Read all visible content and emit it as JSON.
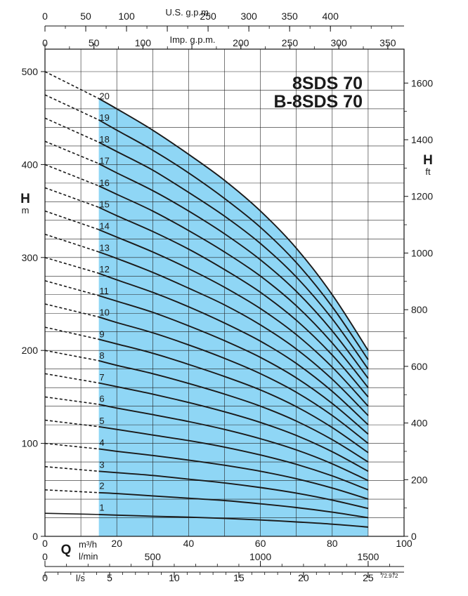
{
  "chart_data": {
    "type": "line",
    "title": "8SDS 70",
    "subtitle": "B-8SDS 70",
    "code": "72.972",
    "colors": {
      "band": "#8fd6f5",
      "curve": "#1a1a1a",
      "grid": "#222222"
    },
    "y_left": {
      "label": "H",
      "unit": "m",
      "range": [
        0,
        500
      ],
      "ticks": [
        0,
        100,
        200,
        300,
        400,
        500
      ]
    },
    "y_right": {
      "label": "H",
      "unit": "ft",
      "ticks": [
        0,
        200,
        400,
        600,
        800,
        1000,
        1200,
        1400,
        1600
      ]
    },
    "x_axes": {
      "usgpm": {
        "label": "U.S. g.p.m.",
        "ticks": [
          "0",
          "50",
          "100",
          "",
          "250",
          "300",
          "350",
          "400"
        ],
        "max": 440.3
      },
      "impgpm": {
        "label": "Imp. g.p.m.",
        "ticks": [
          "0",
          "50",
          "100",
          "",
          "200",
          "250",
          "300",
          "350"
        ],
        "max": 366.6
      },
      "m3h": {
        "label_q": "Q",
        "label": "m³/h",
        "ticks": [
          "0",
          "20",
          "40",
          "60",
          "80",
          "100"
        ],
        "max": 100
      },
      "lmin": {
        "label": "l/min",
        "ticks": [
          "0",
          "500",
          "1000",
          "1500"
        ],
        "max": 1666.7
      },
      "ls": {
        "label": "l/s",
        "ticks": [
          "0",
          "5",
          "10",
          "15",
          "20",
          "25"
        ],
        "max": 27.78
      }
    },
    "operating_range_m3h": [
      15,
      90
    ],
    "stage_label_x_m3h": 17.5,
    "series": [
      {
        "name": "1",
        "shutoff": 24.8,
        "points": [
          [
            15,
            23.5
          ],
          [
            20,
            22.8
          ],
          [
            30,
            21.6
          ],
          [
            40,
            20.6
          ],
          [
            50,
            19.3
          ],
          [
            60,
            17.6
          ],
          [
            70,
            15.5
          ],
          [
            80,
            13.1
          ],
          [
            90,
            10.0
          ]
        ]
      },
      {
        "name": "2",
        "shutoff": 50,
        "points": [
          [
            15,
            47
          ],
          [
            20,
            46
          ],
          [
            30,
            43.5
          ],
          [
            40,
            41
          ],
          [
            50,
            38.5
          ],
          [
            60,
            35
          ],
          [
            70,
            31
          ],
          [
            80,
            26
          ],
          [
            90,
            20
          ]
        ]
      },
      {
        "name": "3",
        "shutoff": 75,
        "points": [
          [
            15,
            70
          ],
          [
            20,
            68.5
          ],
          [
            30,
            65.5
          ],
          [
            40,
            61.5
          ],
          [
            50,
            57.5
          ],
          [
            60,
            52.5
          ],
          [
            70,
            46.5
          ],
          [
            80,
            39
          ],
          [
            90,
            30
          ]
        ]
      },
      {
        "name": "4",
        "shutoff": 100,
        "points": [
          [
            15,
            94
          ],
          [
            20,
            91.5
          ],
          [
            30,
            87
          ],
          [
            40,
            82
          ],
          [
            50,
            76.5
          ],
          [
            60,
            70
          ],
          [
            70,
            62
          ],
          [
            80,
            52
          ],
          [
            90,
            40
          ]
        ]
      },
      {
        "name": "5",
        "shutoff": 125,
        "points": [
          [
            15,
            118
          ],
          [
            20,
            115
          ],
          [
            30,
            109
          ],
          [
            40,
            103
          ],
          [
            50,
            96
          ],
          [
            60,
            87.5
          ],
          [
            70,
            77.5
          ],
          [
            80,
            65
          ],
          [
            90,
            50
          ]
        ]
      },
      {
        "name": "6",
        "shutoff": 150,
        "points": [
          [
            15,
            142
          ],
          [
            20,
            138
          ],
          [
            30,
            131
          ],
          [
            40,
            123.5
          ],
          [
            50,
            115
          ],
          [
            60,
            105
          ],
          [
            70,
            93
          ],
          [
            80,
            78
          ],
          [
            90,
            60
          ]
        ]
      },
      {
        "name": "7",
        "shutoff": 175,
        "points": [
          [
            15,
            165
          ],
          [
            20,
            161
          ],
          [
            30,
            153
          ],
          [
            40,
            144
          ],
          [
            50,
            134
          ],
          [
            60,
            122.5
          ],
          [
            70,
            108.5
          ],
          [
            80,
            91
          ],
          [
            90,
            70
          ]
        ]
      },
      {
        "name": "8",
        "shutoff": 200,
        "points": [
          [
            15,
            189
          ],
          [
            20,
            184
          ],
          [
            30,
            175
          ],
          [
            40,
            164.5
          ],
          [
            50,
            153
          ],
          [
            60,
            140
          ],
          [
            70,
            124
          ],
          [
            80,
            104
          ],
          [
            90,
            80
          ]
        ]
      },
      {
        "name": "9",
        "shutoff": 225,
        "points": [
          [
            15,
            212
          ],
          [
            20,
            207
          ],
          [
            30,
            197
          ],
          [
            40,
            185
          ],
          [
            50,
            172
          ],
          [
            60,
            157.5
          ],
          [
            70,
            139.5
          ],
          [
            80,
            117
          ],
          [
            90,
            90
          ]
        ]
      },
      {
        "name": "10",
        "shutoff": 250,
        "points": [
          [
            15,
            236
          ],
          [
            20,
            230
          ],
          [
            30,
            219
          ],
          [
            40,
            206
          ],
          [
            50,
            191.5
          ],
          [
            60,
            175
          ],
          [
            70,
            155
          ],
          [
            80,
            130
          ],
          [
            90,
            100
          ]
        ]
      },
      {
        "name": "11",
        "shutoff": 275,
        "points": [
          [
            15,
            259
          ],
          [
            20,
            253
          ],
          [
            30,
            241
          ],
          [
            40,
            226.5
          ],
          [
            50,
            210.5
          ],
          [
            60,
            192.5
          ],
          [
            70,
            170.5
          ],
          [
            80,
            143
          ],
          [
            90,
            110
          ]
        ]
      },
      {
        "name": "12",
        "shutoff": 300,
        "points": [
          [
            15,
            283
          ],
          [
            20,
            276
          ],
          [
            30,
            262.5
          ],
          [
            40,
            247
          ],
          [
            50,
            229.5
          ],
          [
            60,
            210
          ],
          [
            70,
            186
          ],
          [
            80,
            156
          ],
          [
            90,
            120
          ]
        ]
      },
      {
        "name": "13",
        "shutoff": 325,
        "points": [
          [
            15,
            306
          ],
          [
            20,
            299
          ],
          [
            30,
            284
          ],
          [
            40,
            267
          ],
          [
            50,
            249
          ],
          [
            60,
            227.5
          ],
          [
            70,
            201.5
          ],
          [
            80,
            169
          ],
          [
            90,
            130
          ]
        ]
      },
      {
        "name": "14",
        "shutoff": 350,
        "points": [
          [
            15,
            330
          ],
          [
            20,
            322
          ],
          [
            30,
            306
          ],
          [
            40,
            288
          ],
          [
            50,
            268
          ],
          [
            60,
            245
          ],
          [
            70,
            217
          ],
          [
            80,
            182
          ],
          [
            90,
            140
          ]
        ]
      },
      {
        "name": "15",
        "shutoff": 375,
        "points": [
          [
            15,
            354
          ],
          [
            20,
            345
          ],
          [
            30,
            328
          ],
          [
            40,
            309
          ],
          [
            50,
            287
          ],
          [
            60,
            262.5
          ],
          [
            70,
            232.5
          ],
          [
            80,
            195
          ],
          [
            90,
            150
          ]
        ]
      },
      {
        "name": "16",
        "shutoff": 400,
        "points": [
          [
            15,
            377
          ],
          [
            20,
            368
          ],
          [
            30,
            350
          ],
          [
            40,
            329
          ],
          [
            50,
            306
          ],
          [
            60,
            280
          ],
          [
            70,
            248
          ],
          [
            80,
            208
          ],
          [
            90,
            160
          ]
        ]
      },
      {
        "name": "17",
        "shutoff": 425,
        "points": [
          [
            15,
            401
          ],
          [
            20,
            391
          ],
          [
            30,
            372
          ],
          [
            40,
            350
          ],
          [
            50,
            325.5
          ],
          [
            60,
            297.5
          ],
          [
            70,
            263.5
          ],
          [
            80,
            221
          ],
          [
            90,
            170
          ]
        ]
      },
      {
        "name": "18",
        "shutoff": 450,
        "points": [
          [
            15,
            424
          ],
          [
            20,
            414
          ],
          [
            30,
            394
          ],
          [
            40,
            370
          ],
          [
            50,
            344.5
          ],
          [
            60,
            315
          ],
          [
            70,
            279
          ],
          [
            80,
            234
          ],
          [
            90,
            180
          ]
        ]
      },
      {
        "name": "19",
        "shutoff": 475,
        "points": [
          [
            15,
            448
          ],
          [
            20,
            437
          ],
          [
            30,
            415.5
          ],
          [
            40,
            391
          ],
          [
            50,
            363.5
          ],
          [
            60,
            332.5
          ],
          [
            70,
            294.5
          ],
          [
            80,
            247
          ],
          [
            90,
            190
          ]
        ]
      },
      {
        "name": "20",
        "shutoff": 500,
        "points": [
          [
            15,
            471
          ],
          [
            20,
            460
          ],
          [
            30,
            437
          ],
          [
            40,
            411
          ],
          [
            50,
            383
          ],
          [
            60,
            350
          ],
          [
            70,
            310
          ],
          [
            80,
            260
          ],
          [
            90,
            200
          ]
        ]
      }
    ]
  }
}
